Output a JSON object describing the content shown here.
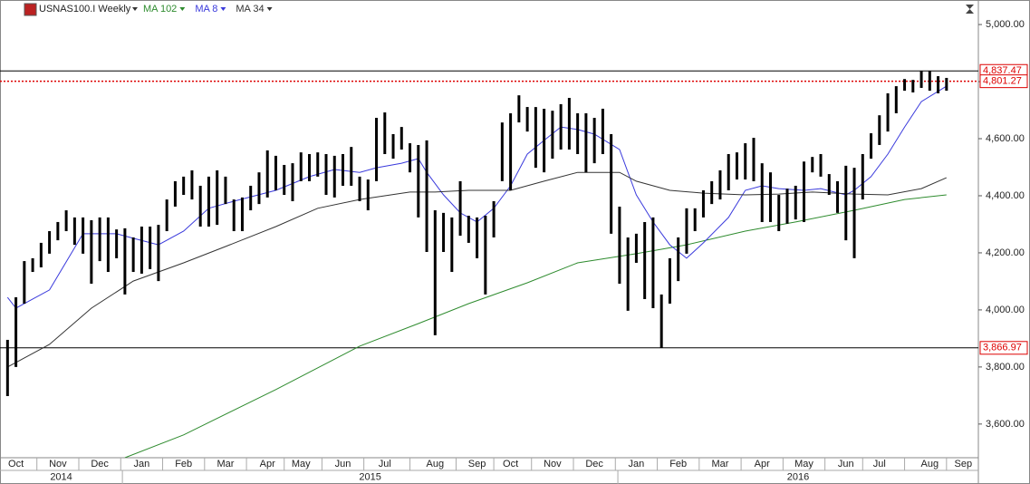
{
  "chart_data": {
    "type": "ohlc",
    "title": "USNAS100.I Weekly",
    "ylim": [
      3482,
      5086
    ],
    "xlim": [
      -0.9,
      115.8
    ],
    "yticks": [
      {
        "value": 3600,
        "label": "3,600.00"
      },
      {
        "value": 3800,
        "label": "3,800.00"
      },
      {
        "value": 4000,
        "label": "4,000.00"
      },
      {
        "value": 4200,
        "label": "4,200.00"
      },
      {
        "value": 4400,
        "label": "4,400.00"
      },
      {
        "value": 4600,
        "label": "4,600.00"
      },
      {
        "value": 4800,
        "label": "4,800.00"
      },
      {
        "value": 5000,
        "label": "5,000.00"
      }
    ],
    "xticks": [
      {
        "value": 1,
        "label": "Oct"
      },
      {
        "value": 6,
        "label": "Nov"
      },
      {
        "value": 11,
        "label": "Dec"
      },
      {
        "value": 16,
        "label": "Jan"
      },
      {
        "value": 21,
        "label": "Feb"
      },
      {
        "value": 26,
        "label": "Mar"
      },
      {
        "value": 31,
        "label": "Apr"
      },
      {
        "value": 35,
        "label": "May"
      },
      {
        "value": 40,
        "label": "Jun"
      },
      {
        "value": 45,
        "label": "Jul"
      },
      {
        "value": 51,
        "label": "Aug"
      },
      {
        "value": 56,
        "label": "Sep"
      },
      {
        "value": 60,
        "label": "Oct"
      },
      {
        "value": 65,
        "label": "Nov"
      },
      {
        "value": 70,
        "label": "Dec"
      },
      {
        "value": 75,
        "label": "Jan"
      },
      {
        "value": 80,
        "label": "Feb"
      },
      {
        "value": 85,
        "label": "Mar"
      },
      {
        "value": 90,
        "label": "Apr"
      },
      {
        "value": 95,
        "label": "May"
      },
      {
        "value": 100,
        "label": "Jun"
      },
      {
        "value": 104,
        "label": "Jul"
      },
      {
        "value": 110,
        "label": "Aug"
      },
      {
        "value": 114,
        "label": "Sep"
      }
    ],
    "years": [
      {
        "label": "2014",
        "range": [
          -0.9,
          13.7
        ]
      },
      {
        "label": "2015",
        "range": [
          13.7,
          72.8
        ]
      },
      {
        "label": "2016",
        "range": [
          72.8,
          115.8
        ]
      }
    ],
    "color": "#000000",
    "high": [
      3895,
      4044,
      4171,
      4181,
      4235,
      4276,
      4308,
      4349,
      4324,
      4324,
      4314,
      4324,
      4324,
      4282,
      4286,
      4254,
      4292,
      4292,
      4298,
      4387,
      4451,
      4467,
      4489,
      4435,
      4467,
      4489,
      4467,
      4387,
      4394,
      4435,
      4482,
      4559,
      4540,
      4508,
      4514,
      4552,
      4546,
      4552,
      4546,
      4540,
      4546,
      4571,
      4467,
      4457,
      4673,
      4692,
      4616,
      4641,
      4584,
      4578,
      4594,
      4349,
      4340,
      4324,
      4451,
      4330,
      4324,
      4330,
      4381,
      4657,
      4689,
      4752,
      4711,
      4711,
      4705,
      4698,
      4721,
      4743,
      4689,
      4689,
      4673,
      4705,
      4616,
      4362,
      4254,
      4267,
      4308,
      4324,
      4054,
      4181,
      4254,
      4356,
      4356,
      4419,
      4451,
      4489,
      4546,
      4552,
      4584,
      4603,
      4514,
      4482,
      4403,
      4425,
      4435,
      4520,
      4536,
      4546,
      4476,
      4451,
      4505,
      4498,
      4546,
      4619,
      4682,
      4759,
      4784,
      4809,
      4806,
      4838,
      4838,
      4819,
      4813
    ],
    "low": [
      3698,
      3800,
      4022,
      4133,
      4149,
      4197,
      4244,
      4276,
      4228,
      4197,
      4092,
      4171,
      4133,
      4181,
      4054,
      4133,
      4127,
      4143,
      4101,
      4276,
      4362,
      4403,
      4387,
      4292,
      4292,
      4298,
      4371,
      4276,
      4276,
      4349,
      4371,
      4394,
      4419,
      4403,
      4381,
      4451,
      4451,
      4467,
      4403,
      4394,
      4435,
      4435,
      4381,
      4349,
      4451,
      4546,
      4530,
      4562,
      4482,
      4324,
      4203,
      3911,
      4203,
      4133,
      4260,
      4235,
      4181,
      4054,
      4254,
      4451,
      4419,
      4657,
      4625,
      4498,
      4482,
      4530,
      4562,
      4562,
      4546,
      4482,
      4514,
      4546,
      4267,
      4092,
      3997,
      4165,
      4038,
      4006,
      3867,
      4022,
      4101,
      4197,
      4276,
      4324,
      4371,
      4387,
      4419,
      4457,
      4457,
      4451,
      4308,
      4308,
      4276,
      4302,
      4317,
      4308,
      4482,
      4467,
      4403,
      4340,
      4244,
      4181,
      4387,
      4530,
      4578,
      4625,
      4689,
      4768,
      4762,
      4778,
      4768,
      4759,
      4768
    ],
    "series": [
      {
        "name": "MA 102",
        "color": "#2e8b2e",
        "x": [
          14,
          21,
          32,
          42,
          49,
          55,
          62,
          68,
          75,
          81,
          88,
          94,
          101,
          107,
          112
        ],
        "values": [
          3482,
          3562,
          3721,
          3873,
          3952,
          4022,
          4095,
          4165,
          4197,
          4228,
          4276,
          4308,
          4349,
          4387,
          4403
        ]
      },
      {
        "name": "MA 8",
        "color": "#3a3adc",
        "x": [
          0,
          1,
          5,
          9,
          13,
          15,
          18,
          21,
          24,
          27,
          32,
          36,
          39,
          42,
          44,
          47,
          49,
          50,
          52,
          54,
          56,
          58,
          60,
          62,
          64,
          66,
          68,
          70,
          73,
          75,
          77,
          79,
          81,
          83,
          86,
          88,
          90,
          92,
          95,
          97,
          100,
          101,
          103,
          105,
          107,
          109,
          112
        ],
        "values": [
          4044,
          4006,
          4070,
          4267,
          4267,
          4251,
          4228,
          4276,
          4356,
          4381,
          4419,
          4467,
          4492,
          4482,
          4498,
          4514,
          4530,
          4482,
          4403,
          4340,
          4308,
          4356,
          4435,
          4546,
          4594,
          4641,
          4632,
          4616,
          4562,
          4403,
          4308,
          4228,
          4181,
          4235,
          4324,
          4419,
          4435,
          4425,
          4419,
          4425,
          4403,
          4419,
          4467,
          4546,
          4641,
          4730,
          4784
        ]
      },
      {
        "name": "MA 34",
        "color": "#333333",
        "x": [
          0,
          5,
          10,
          15,
          21,
          26,
          32,
          37,
          42,
          48,
          51,
          55,
          60,
          64,
          68,
          73,
          75,
          79,
          83,
          88,
          92,
          96,
          101,
          105,
          109,
          112
        ],
        "values": [
          3800,
          3879,
          4006,
          4101,
          4165,
          4222,
          4292,
          4356,
          4387,
          4413,
          4413,
          4419,
          4419,
          4451,
          4482,
          4482,
          4451,
          4419,
          4409,
          4403,
          4406,
          4413,
          4406,
          4403,
          4425,
          4463
        ]
      }
    ],
    "levels": [
      {
        "value": 4837.47,
        "label": "4,837.47",
        "style": "solid"
      },
      {
        "value": 4801.27,
        "label": "4,801.27",
        "style": "dotted"
      },
      {
        "value": 3866.97,
        "label": "3,866.97",
        "style": "solid"
      }
    ]
  }
}
